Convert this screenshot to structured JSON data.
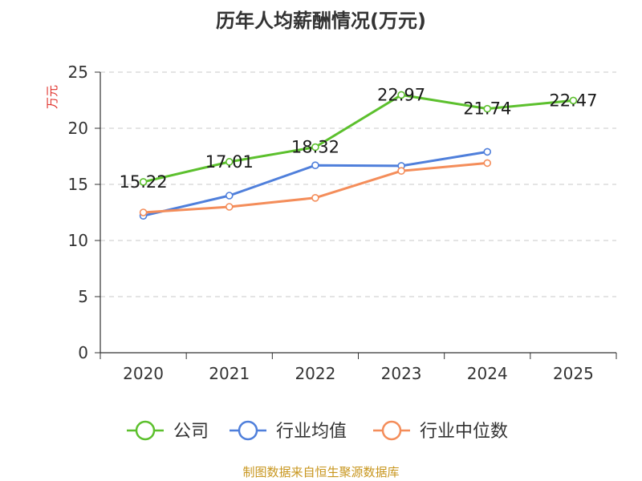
{
  "chart_data": {
    "type": "line",
    "title": "历年人均薪酬情况(万元)",
    "ylabel": "万元",
    "xlabel": "",
    "categories": [
      "2020",
      "2021",
      "2022",
      "2023",
      "2024",
      "2025"
    ],
    "ylim": [
      0,
      25
    ],
    "yticks": [
      0,
      5,
      10,
      15,
      20,
      25
    ],
    "grid": true,
    "legend_position": "bottom",
    "series": [
      {
        "name": "公司",
        "color": "#5cc02d",
        "show_labels": true,
        "labels": [
          "15.22",
          "17.01",
          "18.32",
          "22.97",
          "21.74",
          "22.47"
        ],
        "values": [
          15.22,
          17.01,
          18.32,
          22.97,
          21.74,
          22.47
        ]
      },
      {
        "name": "行业均值",
        "color": "#4f7fdb",
        "show_labels": false,
        "values": [
          12.2,
          14.0,
          16.7,
          16.65,
          17.9,
          null
        ]
      },
      {
        "name": "行业中位数",
        "color": "#f48d5a",
        "show_labels": false,
        "values": [
          12.5,
          13.0,
          13.8,
          16.2,
          16.9,
          null
        ]
      }
    ]
  },
  "source": "制图数据来自恒生聚源数据库"
}
